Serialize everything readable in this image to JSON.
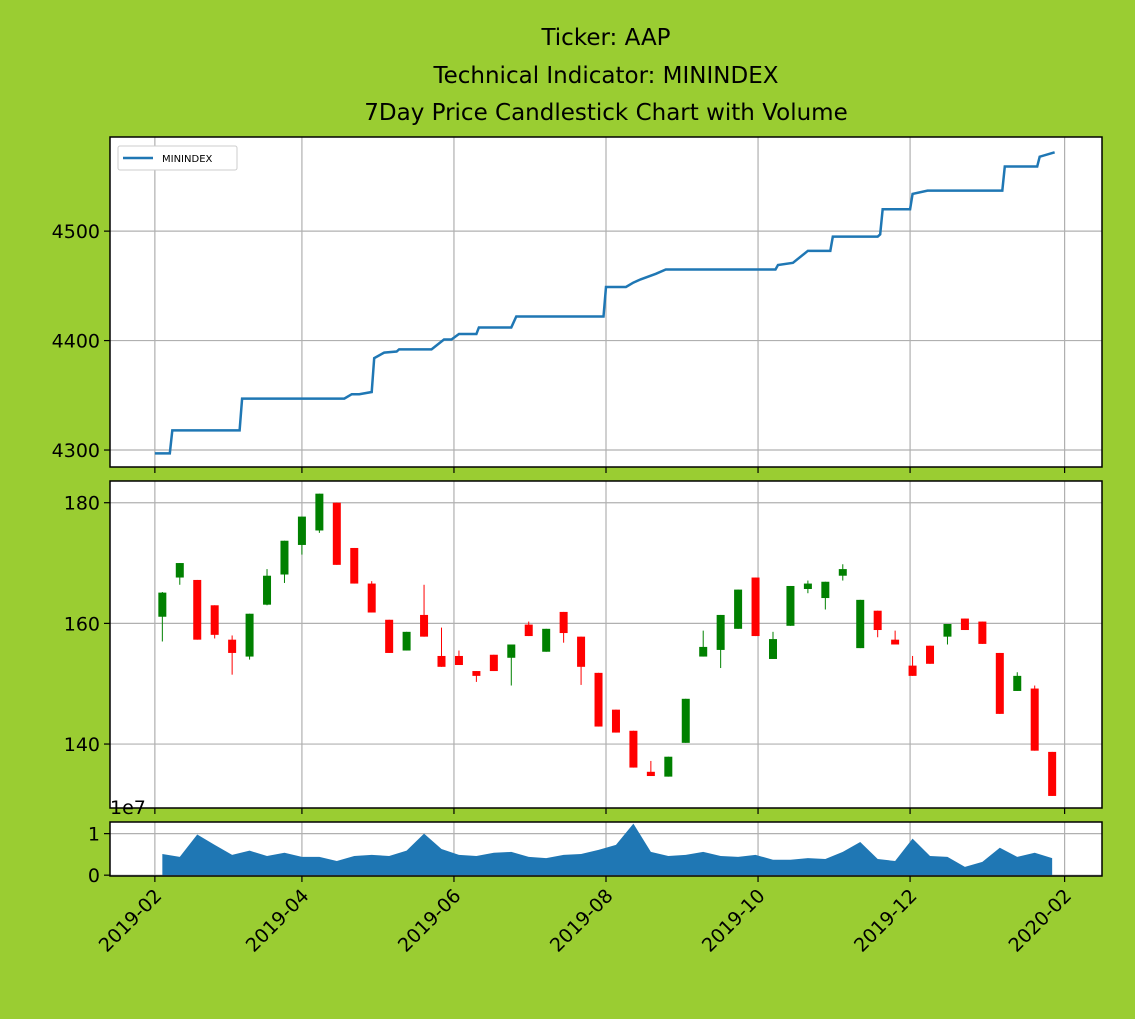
{
  "chart_data": [
    {
      "type": "line",
      "title": [
        "Ticker: AAP",
        "Technical Indicator: MININDEX",
        "7Day Price Candlestick Chart with Volume"
      ],
      "x": [
        "2019-02-01",
        "2019-02-07",
        "2019-02-08",
        "2019-03-07",
        "2019-03-08",
        "2019-04-18",
        "2019-04-21",
        "2019-04-24",
        "2019-04-29",
        "2019-04-30",
        "2019-05-04",
        "2019-05-09",
        "2019-05-10",
        "2019-05-23",
        "2019-05-28",
        "2019-05-31",
        "2019-06-03",
        "2019-06-10",
        "2019-06-11",
        "2019-06-24",
        "2019-06-26",
        "2019-07-31",
        "2019-08-01",
        "2019-08-09",
        "2019-08-12",
        "2019-08-15",
        "2019-08-21",
        "2019-08-25",
        "2019-10-08",
        "2019-10-09",
        "2019-10-15",
        "2019-10-21",
        "2019-10-30",
        "2019-10-31",
        "2019-11-18",
        "2019-11-19",
        "2019-11-20",
        "2019-12-01",
        "2019-12-02",
        "2019-12-08",
        "2020-01-07",
        "2020-01-08",
        "2020-01-21",
        "2020-01-22",
        "2020-01-28"
      ],
      "series": [
        {
          "name": "MININDEX",
          "color": "#1f77b4",
          "values": [
            4297,
            4297,
            4318,
            4318,
            4347,
            4347,
            4351,
            4351,
            4353,
            4384,
            4389,
            4390,
            4392,
            4392,
            4401,
            4401,
            4406,
            4406,
            4412,
            4412,
            4422,
            4422,
            4449,
            4449,
            4453,
            4456,
            4461,
            4465,
            4465,
            4469,
            4471,
            4482,
            4482,
            4495,
            4495,
            4497,
            4520,
            4520,
            4534,
            4537,
            4537,
            4559,
            4559,
            4568,
            4572
          ]
        }
      ],
      "xlim": [
        "2019-01-14",
        "2020-02-16"
      ],
      "ylim": [
        4284.5,
        4586
      ],
      "yticks": [
        4300,
        4400,
        4500
      ],
      "grid": true,
      "legend": "upper left"
    },
    {
      "type": "candlestick",
      "x": [
        "2019-02-04",
        "2019-02-11",
        "2019-02-18",
        "2019-02-25",
        "2019-03-04",
        "2019-03-11",
        "2019-03-18",
        "2019-03-25",
        "2019-04-01",
        "2019-04-08",
        "2019-04-15",
        "2019-04-22",
        "2019-04-29",
        "2019-05-06",
        "2019-05-13",
        "2019-05-20",
        "2019-05-27",
        "2019-06-03",
        "2019-06-10",
        "2019-06-17",
        "2019-06-24",
        "2019-07-01",
        "2019-07-08",
        "2019-07-15",
        "2019-07-22",
        "2019-07-29",
        "2019-08-05",
        "2019-08-12",
        "2019-08-19",
        "2019-08-26",
        "2019-09-02",
        "2019-09-09",
        "2019-09-16",
        "2019-09-23",
        "2019-09-30",
        "2019-10-07",
        "2019-10-14",
        "2019-10-21",
        "2019-10-28",
        "2019-11-04",
        "2019-11-11",
        "2019-11-18",
        "2019-11-25",
        "2019-12-02",
        "2019-12-09",
        "2019-12-16",
        "2019-12-23",
        "2019-12-30",
        "2020-01-06",
        "2020-01-13",
        "2020-01-20",
        "2020-01-27"
      ],
      "open": [
        161.1,
        167.6,
        167.2,
        163.0,
        157.3,
        154.5,
        163.1,
        168.1,
        173.0,
        175.4,
        180.0,
        172.5,
        166.6,
        160.6,
        155.5,
        161.4,
        154.6,
        154.6,
        152.1,
        154.8,
        154.3,
        159.8,
        155.3,
        161.9,
        157.8,
        151.8,
        145.7,
        142.2,
        135.4,
        134.6,
        140.2,
        154.5,
        155.6,
        159.1,
        167.6,
        154.1,
        159.6,
        165.7,
        164.2,
        167.9,
        155.9,
        162.1,
        157.3,
        153.0,
        156.3,
        157.8,
        160.8,
        160.3,
        155.1,
        148.8,
        149.2,
        138.7
      ],
      "high": [
        165.2,
        170.0,
        167.2,
        163.0,
        158.0,
        161.6,
        169.0,
        173.7,
        177.7,
        181.5,
        180.0,
        172.5,
        167.0,
        160.6,
        158.6,
        166.4,
        159.3,
        155.5,
        152.1,
        154.8,
        156.5,
        160.3,
        159.1,
        161.9,
        157.8,
        151.8,
        145.7,
        142.2,
        137.2,
        137.9,
        147.5,
        158.8,
        161.4,
        165.6,
        167.6,
        158.6,
        166.2,
        167.1,
        166.9,
        169.8,
        163.9,
        162.1,
        158.8,
        154.6,
        156.3,
        159.9,
        160.8,
        160.3,
        155.1,
        151.9,
        149.7,
        138.7
      ],
      "low": [
        157.0,
        166.4,
        157.3,
        157.5,
        151.5,
        154.0,
        163.0,
        166.7,
        171.4,
        175.0,
        169.7,
        166.6,
        161.8,
        155.1,
        155.5,
        157.8,
        152.8,
        153.1,
        150.3,
        152.1,
        149.7,
        157.9,
        155.3,
        156.8,
        149.8,
        142.9,
        141.9,
        136.1,
        134.7,
        134.6,
        140.2,
        154.5,
        152.6,
        159.1,
        157.9,
        154.1,
        159.6,
        165.0,
        162.3,
        167.1,
        155.9,
        157.7,
        156.5,
        151.3,
        153.3,
        156.5,
        158.9,
        156.6,
        145.0,
        148.8,
        138.9,
        131.4
      ],
      "close": [
        165.1,
        170.0,
        157.3,
        158.1,
        155.1,
        161.6,
        167.9,
        173.7,
        177.7,
        181.5,
        169.7,
        166.6,
        161.8,
        155.1,
        158.6,
        157.8,
        152.8,
        153.1,
        151.3,
        152.1,
        156.5,
        157.9,
        159.1,
        158.4,
        152.8,
        142.9,
        141.9,
        136.1,
        134.7,
        137.9,
        147.5,
        156.1,
        161.4,
        165.6,
        157.9,
        157.4,
        166.2,
        166.6,
        166.9,
        169.0,
        163.9,
        158.9,
        156.5,
        151.3,
        153.3,
        159.9,
        158.9,
        156.6,
        145.0,
        151.3,
        138.9,
        131.4
      ],
      "up_color": "green",
      "down_color": "red",
      "xlim": [
        "2019-01-14",
        "2020-02-16"
      ],
      "ylim": [
        129.4,
        183.6
      ],
      "yticks": [
        140,
        160,
        180
      ],
      "grid": true
    },
    {
      "type": "area",
      "x": [
        "2019-02-04",
        "2019-02-11",
        "2019-02-18",
        "2019-02-25",
        "2019-03-04",
        "2019-03-11",
        "2019-03-18",
        "2019-03-25",
        "2019-04-01",
        "2019-04-08",
        "2019-04-15",
        "2019-04-22",
        "2019-04-29",
        "2019-05-06",
        "2019-05-13",
        "2019-05-20",
        "2019-05-27",
        "2019-06-03",
        "2019-06-10",
        "2019-06-17",
        "2019-06-24",
        "2019-07-01",
        "2019-07-08",
        "2019-07-15",
        "2019-07-22",
        "2019-07-29",
        "2019-08-05",
        "2019-08-12",
        "2019-08-19",
        "2019-08-26",
        "2019-09-02",
        "2019-09-09",
        "2019-09-16",
        "2019-09-23",
        "2019-09-30",
        "2019-10-07",
        "2019-10-14",
        "2019-10-21",
        "2019-10-28",
        "2019-11-04",
        "2019-11-11",
        "2019-11-18",
        "2019-11-25",
        "2019-12-02",
        "2019-12-09",
        "2019-12-16",
        "2019-12-23",
        "2019-12-30",
        "2020-01-06",
        "2020-01-13",
        "2020-01-20",
        "2020-01-27"
      ],
      "values": [
        0.51,
        0.44,
        0.98,
        0.73,
        0.49,
        0.59,
        0.46,
        0.54,
        0.44,
        0.44,
        0.34,
        0.46,
        0.49,
        0.46,
        0.59,
        1.0,
        0.63,
        0.49,
        0.46,
        0.54,
        0.56,
        0.44,
        0.41,
        0.49,
        0.51,
        0.61,
        0.73,
        1.24,
        0.56,
        0.46,
        0.49,
        0.56,
        0.46,
        0.44,
        0.49,
        0.37,
        0.37,
        0.41,
        0.39,
        0.56,
        0.8,
        0.39,
        0.34,
        0.88,
        0.46,
        0.44,
        0.2,
        0.32,
        0.66,
        0.44,
        0.54,
        0.41
      ],
      "color": "#1f77b4",
      "offset_label": "1e7",
      "xlim": [
        "2019-01-14",
        "2020-02-16"
      ],
      "ylim": [
        -0.02,
        1.28
      ],
      "yticks": [
        0,
        1
      ],
      "xticks": [
        {
          "value": "2019-02-01",
          "label": "2019-02"
        },
        {
          "value": "2019-04-01",
          "label": "2019-04"
        },
        {
          "value": "2019-06-01",
          "label": "2019-06"
        },
        {
          "value": "2019-08-01",
          "label": "2019-08"
        },
        {
          "value": "2019-10-01",
          "label": "2019-10"
        },
        {
          "value": "2019-12-01",
          "label": "2019-12"
        },
        {
          "value": "2020-02-01",
          "label": "2020-02"
        }
      ],
      "grid": true
    }
  ]
}
